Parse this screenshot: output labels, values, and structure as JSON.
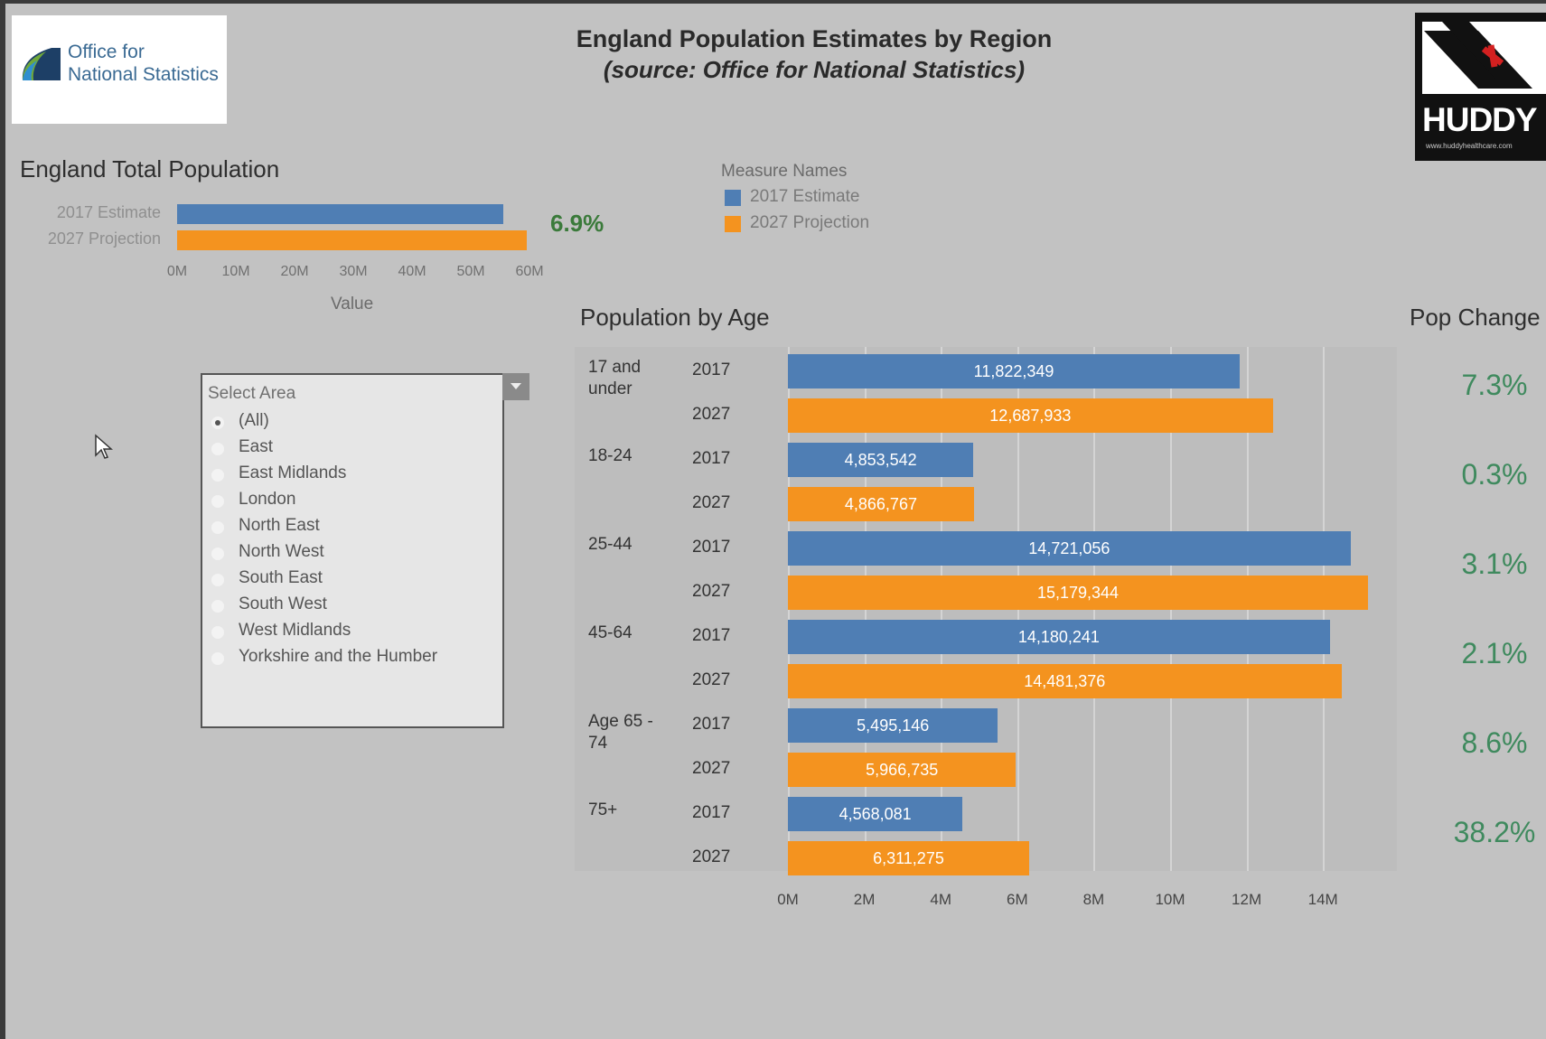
{
  "header": {
    "title": "England Population Estimates by Region",
    "subtitle": "(source: Office for National Statistics)",
    "ons_logo_line1": "Office for",
    "ons_logo_line2": "National Statistics",
    "huddy_logo_text": "HUDDY",
    "huddy_logo_url": "www.huddyhealthcare.com"
  },
  "legend": {
    "title": "Measure Names",
    "items": [
      {
        "label": "2017 Estimate",
        "color": "#4f7eb4"
      },
      {
        "label": "2027 Projection",
        "color": "#f4931f"
      }
    ]
  },
  "filter": {
    "title": "Select Area",
    "selected": "(All)",
    "options": [
      "(All)",
      "East",
      "East Midlands",
      "London",
      "North East",
      "North West",
      "South East",
      "South West",
      "West Midlands",
      "Yorkshire and the Humber"
    ]
  },
  "chart_data": [
    {
      "type": "bar",
      "title": "England Total Population",
      "orientation": "horizontal",
      "categories": [
        "2017 Estimate",
        "2027 Projection"
      ],
      "values": [
        55600000,
        59500000
      ],
      "colors": [
        "#4f7eb4",
        "#f4931f"
      ],
      "xlabel": "Value",
      "xlim": [
        0,
        60000000
      ],
      "xtick_labels": [
        "0M",
        "10M",
        "20M",
        "30M",
        "40M",
        "50M",
        "60M"
      ],
      "annotation": "6.9%"
    },
    {
      "type": "bar",
      "title": "Population by Age",
      "orientation": "horizontal",
      "categories": [
        "17 and under",
        "18-24",
        "25-44",
        "45-64",
        "Age 65 - 74",
        "75+"
      ],
      "years": [
        "2017",
        "2027"
      ],
      "series": [
        {
          "name": "2017 Estimate",
          "color": "#4f7eb4",
          "values": [
            11822349,
            4853542,
            14721056,
            14180241,
            5495146,
            4568081
          ],
          "labels": [
            "11,822,349",
            "4,853,542",
            "14,721,056",
            "14,180,241",
            "5,495,146",
            "4,568,081"
          ]
        },
        {
          "name": "2027 Projection",
          "color": "#f4931f",
          "values": [
            12687933,
            4866767,
            15179344,
            14481376,
            5966735,
            6311275
          ],
          "labels": [
            "12,687,933",
            "4,866,767",
            "15,179,344",
            "14,481,376",
            "5,966,735",
            "6,311,275"
          ]
        }
      ],
      "xlim": [
        0,
        16000000
      ],
      "xtick_labels": [
        "0M",
        "2M",
        "4M",
        "6M",
        "8M",
        "10M",
        "12M",
        "14M"
      ],
      "grid": true
    },
    {
      "type": "table",
      "title": "Pop Change",
      "categories": [
        "17 and under",
        "18-24",
        "25-44",
        "45-64",
        "Age 65 - 74",
        "75+"
      ],
      "values": [
        "7.3%",
        "0.3%",
        "3.1%",
        "2.1%",
        "8.6%",
        "38.2%"
      ]
    }
  ]
}
